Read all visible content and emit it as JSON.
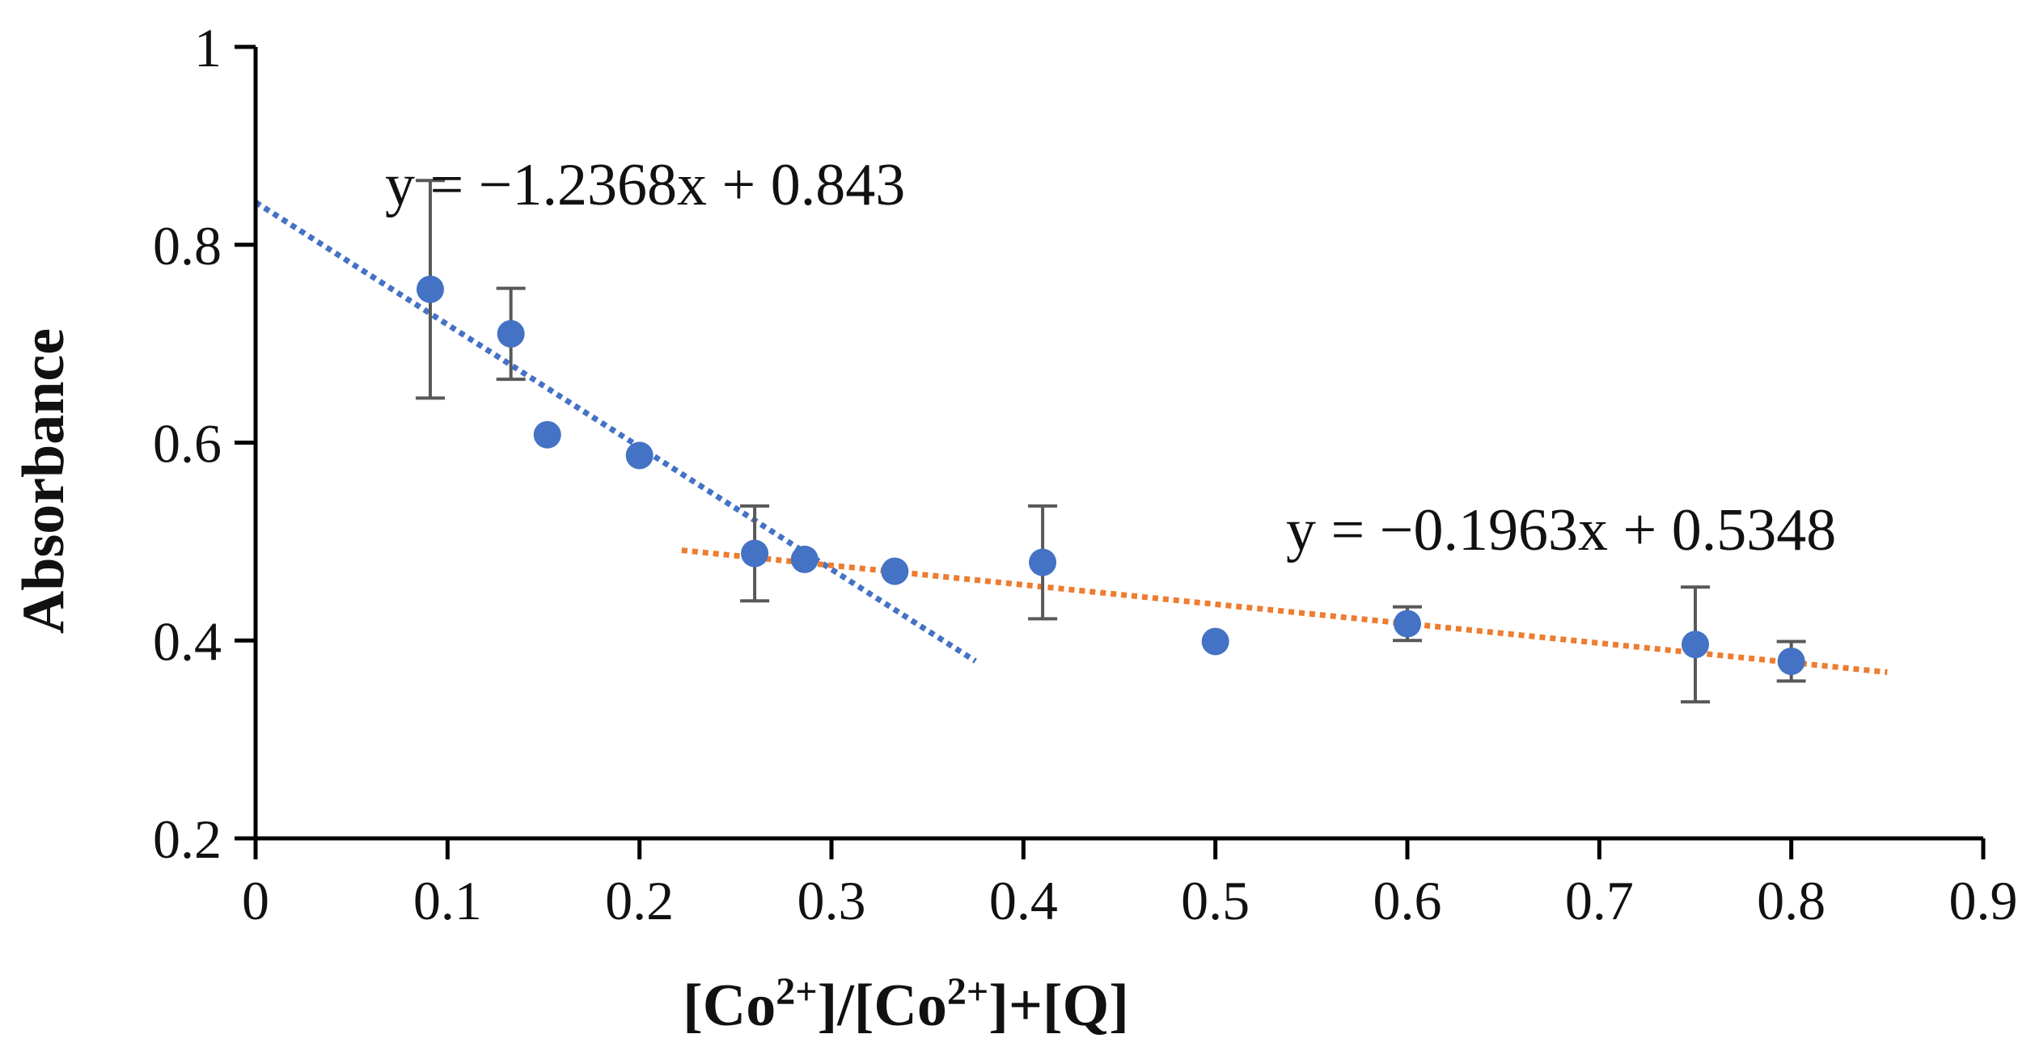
{
  "chart_data": {
    "type": "scatter",
    "title": "",
    "xlabel": "[Co2+]/[Co2+]+[Q]",
    "xlabel_parts": {
      "a": "[Co",
      "sup1": "2+",
      "b": "]/[Co",
      "sup2": "2+",
      "c": "]+[Q]"
    },
    "ylabel": "Absorbance",
    "xlim": [
      0,
      0.9
    ],
    "ylim": [
      0.2,
      1.0
    ],
    "xticks": [
      0,
      0.1,
      0.2,
      0.3,
      0.4,
      0.5,
      0.6,
      0.7,
      0.8,
      0.9
    ],
    "xtick_labels": [
      "0",
      "0.1",
      "0.2",
      "0.3",
      "0.4",
      "0.5",
      "0.6",
      "0.7",
      "0.8",
      "0.9"
    ],
    "yticks": [
      0.2,
      0.4,
      0.6,
      0.8,
      1.0
    ],
    "ytick_labels": [
      "0.2",
      "0.4",
      "0.6",
      "0.8",
      "1"
    ],
    "grid": false,
    "series": [
      {
        "name": "Absorbance",
        "color": "#4472C4",
        "x": [
          0.091,
          0.133,
          0.152,
          0.2,
          0.26,
          0.286,
          0.333,
          0.41,
          0.5,
          0.6,
          0.75,
          0.8
        ],
        "y": [
          0.755,
          0.71,
          0.608,
          0.587,
          0.488,
          0.482,
          0.47,
          0.479,
          0.399,
          0.417,
          0.396,
          0.379
        ],
        "yerr": [
          0.11,
          0.046,
          0,
          0,
          0.048,
          0,
          0,
          0.057,
          0,
          0.017,
          0.058,
          0.02
        ]
      }
    ],
    "trendlines": [
      {
        "name": "blue-trendline",
        "color": "#4472C4",
        "slope": -1.2368,
        "intercept": 0.843,
        "x_range": [
          0,
          0.375
        ],
        "equation": "y = −1.2368x + 0.843"
      },
      {
        "name": "orange-trendline",
        "color": "#ED7D31",
        "slope": -0.1963,
        "intercept": 0.5348,
        "x_range": [
          0.222,
          0.85
        ],
        "equation": "y = −0.1963x + 0.5348"
      }
    ],
    "errorbar_color": "#595959",
    "axis_color": "#000000"
  }
}
